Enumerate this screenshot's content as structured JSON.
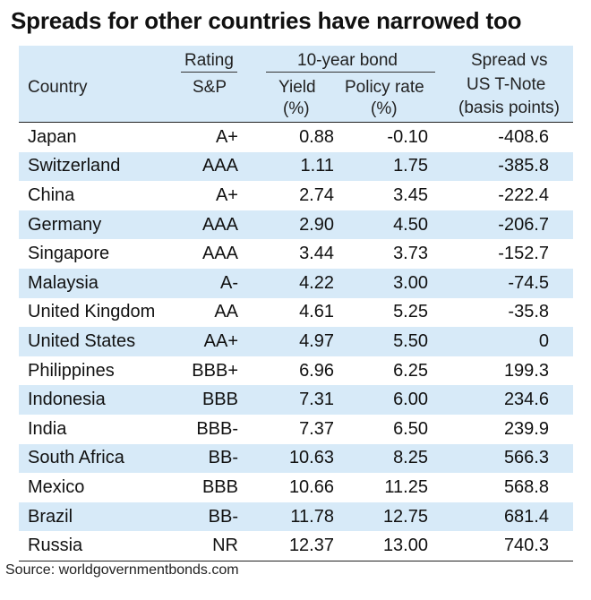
{
  "title": "Spreads for other countries have narrowed too",
  "header": {
    "country": "Country",
    "rating_group": "Rating",
    "rating_sub": "S&P",
    "bond_group": "10-year bond",
    "yield_line1": "Yield",
    "yield_line2": "(%)",
    "policy_line1": "Policy rate",
    "policy_line2": "(%)",
    "spread_line1": "Spread vs",
    "spread_line2": "US T-Note",
    "spread_line3": "(basis points)"
  },
  "source": "Source: worldgovernmentbonds.com",
  "colors": {
    "band": "#d7eaf8",
    "text": "#111111",
    "rule": "#222222"
  },
  "chart_data": {
    "type": "table",
    "title": "Spreads for other countries have narrowed too",
    "columns": [
      "Country",
      "Rating S&P",
      "10-year bond Yield (%)",
      "Policy rate (%)",
      "Spread vs US T-Note (basis points)"
    ],
    "rows": [
      [
        "Japan",
        "A+",
        "0.88",
        "-0.10",
        "-408.6"
      ],
      [
        "Switzerland",
        "AAA",
        "1.11",
        "1.75",
        "-385.8"
      ],
      [
        "China",
        "A+",
        "2.74",
        "3.45",
        "-222.4"
      ],
      [
        "Germany",
        "AAA",
        "2.90",
        "4.50",
        "-206.7"
      ],
      [
        "Singapore",
        "AAA",
        "3.44",
        "3.73",
        "-152.7"
      ],
      [
        "Malaysia",
        "A-",
        "4.22",
        "3.00",
        "-74.5"
      ],
      [
        "United Kingdom",
        "AA",
        "4.61",
        "5.25",
        "-35.8"
      ],
      [
        "United States",
        "AA+",
        "4.97",
        "5.50",
        "0"
      ],
      [
        "Philippines",
        "BBB+",
        "6.96",
        "6.25",
        "199.3"
      ],
      [
        "Indonesia",
        "BBB",
        "7.31",
        "6.00",
        "234.6"
      ],
      [
        "India",
        "BBB-",
        "7.37",
        "6.50",
        "239.9"
      ],
      [
        "South Africa",
        "BB-",
        "10.63",
        "8.25",
        "566.3"
      ],
      [
        "Mexico",
        "BBB",
        "10.66",
        "11.25",
        "568.8"
      ],
      [
        "Brazil",
        "BB-",
        "11.78",
        "12.75",
        "681.4"
      ],
      [
        "Russia",
        "NR",
        "12.37",
        "13.00",
        "740.3"
      ]
    ]
  }
}
